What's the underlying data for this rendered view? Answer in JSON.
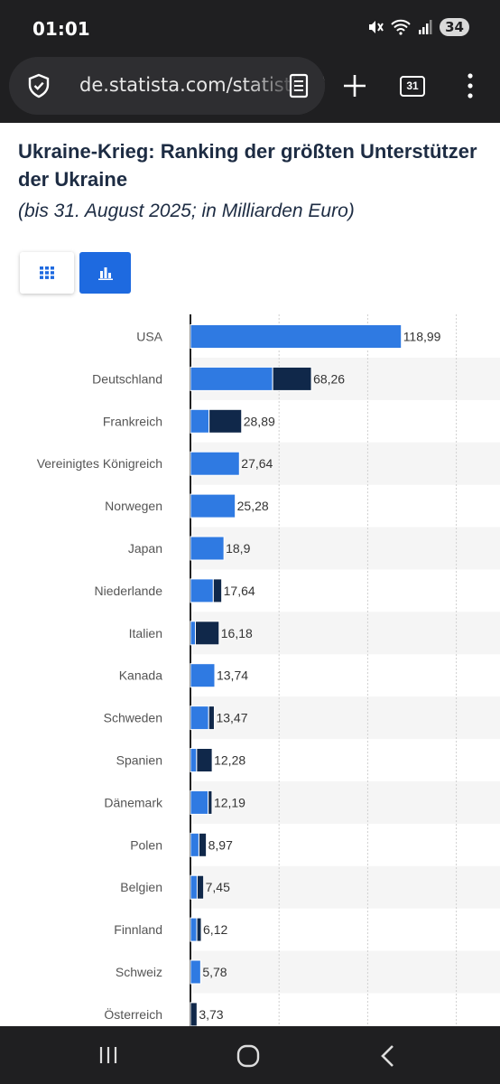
{
  "status_bar": {
    "time": "01:01",
    "battery": "34",
    "icons": [
      "mute-icon",
      "wifi-icon",
      "signal-icon",
      "battery-icon"
    ]
  },
  "browser": {
    "url": "de.statista.com/statistik/daten/studie/",
    "tab_count": "31",
    "icons": [
      "shield-icon",
      "reader-mode-icon",
      "plus-icon",
      "tabs-icon",
      "menu-icon"
    ]
  },
  "page": {
    "title": "Ukraine-Krieg: Ranking der größten Unterstützer der Ukraine",
    "subtitle": "(bis 31. August 2025; in Milliarden Euro)"
  },
  "view_toggle": {
    "active": "chart",
    "accent": "#1e6ae0"
  },
  "colors": {
    "series_light": "#2f7ae2",
    "series_dark": "#10284a"
  },
  "chart_data": {
    "type": "bar",
    "orientation": "horizontal",
    "stacked": true,
    "categories": [
      "USA",
      "Deutschland",
      "Frankreich",
      "Vereinigtes Königreich",
      "Norwegen",
      "Japan",
      "Niederlande",
      "Italien",
      "Kanada",
      "Schweden",
      "Spanien",
      "Dänemark",
      "Polen",
      "Belgien",
      "Finnland",
      "Schweiz",
      "Österreich"
    ],
    "series": [
      {
        "values": [
          118.99,
          46.4,
          10.5,
          27.64,
          25.28,
          18.9,
          12.9,
          2.8,
          13.74,
          10.3,
          3.5,
          10.0,
          4.8,
          3.8,
          3.6,
          5.78,
          0.0
        ]
      },
      {
        "values": [
          0,
          21.86,
          18.39,
          0,
          0,
          0,
          4.74,
          13.38,
          0,
          3.17,
          8.78,
          2.19,
          4.17,
          3.65,
          2.52,
          0,
          3.73
        ]
      }
    ],
    "totals": [
      "118,99",
      "68,26",
      "28,89",
      "27,64",
      "25,28",
      "18,9",
      "17,64",
      "16,18",
      "13,74",
      "13,47",
      "12,28",
      "12,19",
      "8,97",
      "7,45",
      "6,12",
      "5,78",
      "3,73"
    ],
    "xlim": [
      0,
      150
    ],
    "grid": true
  },
  "nav_bar": {
    "icons": [
      "recent-apps-icon",
      "home-icon",
      "back-icon"
    ]
  }
}
